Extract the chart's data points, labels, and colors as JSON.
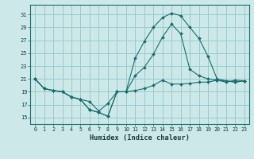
{
  "xlabel": "Humidex (Indice chaleur)",
  "background_color": "#cce8e8",
  "grid_color": "#99cccc",
  "line_color": "#1a6e6e",
  "xlim": [
    -0.5,
    23.5
  ],
  "ylim": [
    14.0,
    32.5
  ],
  "yticks": [
    15,
    17,
    19,
    21,
    23,
    25,
    27,
    29,
    31
  ],
  "xticks": [
    0,
    1,
    2,
    3,
    4,
    5,
    6,
    7,
    8,
    9,
    10,
    11,
    12,
    13,
    14,
    15,
    16,
    17,
    18,
    19,
    20,
    21,
    22,
    23
  ],
  "line1_x": [
    0,
    1,
    2,
    3,
    4,
    5,
    6,
    7,
    8,
    9,
    10,
    11,
    12,
    13,
    14,
    15,
    16,
    17,
    18,
    19,
    20,
    21,
    22,
    23
  ],
  "line1_y": [
    21.0,
    19.5,
    19.2,
    19.0,
    18.2,
    17.8,
    16.2,
    15.8,
    15.2,
    19.0,
    19.0,
    19.2,
    19.5,
    20.0,
    20.8,
    20.2,
    20.2,
    20.3,
    20.5,
    20.5,
    20.8,
    20.5,
    20.8,
    20.7
  ],
  "line2_x": [
    0,
    1,
    2,
    3,
    4,
    5,
    6,
    7,
    8,
    9,
    10,
    11,
    12,
    13,
    14,
    15,
    16,
    17,
    18,
    19,
    20,
    21,
    22,
    23
  ],
  "line2_y": [
    21.0,
    19.5,
    19.2,
    19.0,
    18.2,
    17.8,
    17.5,
    16.0,
    17.2,
    19.0,
    19.0,
    24.2,
    26.8,
    29.0,
    30.5,
    31.2,
    30.8,
    29.0,
    27.3,
    24.5,
    21.0,
    20.7,
    20.5,
    20.7
  ],
  "line3_x": [
    0,
    1,
    2,
    3,
    4,
    5,
    6,
    7,
    8,
    9,
    10,
    11,
    12,
    13,
    14,
    15,
    16,
    17,
    18,
    19,
    20,
    21,
    22,
    23
  ],
  "line3_y": [
    21.0,
    19.5,
    19.2,
    19.0,
    18.2,
    17.8,
    16.2,
    15.8,
    15.2,
    19.0,
    19.0,
    21.5,
    22.8,
    24.8,
    27.5,
    29.5,
    28.0,
    22.5,
    21.5,
    21.0,
    20.8,
    20.7,
    20.5,
    20.7
  ]
}
